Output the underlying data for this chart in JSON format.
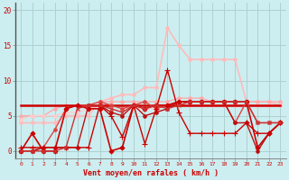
{
  "bg_color": "#cceef0",
  "grid_color": "#aacccc",
  "xlabel": "Vent moyen/en rafales ( km/h )",
  "xlabel_color": "#cc0000",
  "ylabel_ticks": [
    0,
    5,
    10,
    15,
    20
  ],
  "xticks": [
    0,
    1,
    2,
    3,
    4,
    5,
    6,
    7,
    8,
    9,
    10,
    11,
    12,
    13,
    14,
    15,
    16,
    17,
    18,
    19,
    20,
    21,
    22,
    23
  ],
  "xlim": [
    -0.5,
    23.5
  ],
  "ylim": [
    -1,
    21
  ],
  "lines": [
    {
      "comment": "light pink high line - peaks at x=13 ~17.5, x=14~15, x=15~13, x=16~13",
      "y": [
        4,
        4,
        4,
        4,
        5,
        5,
        5,
        7,
        7.5,
        8,
        8,
        9,
        9,
        17.5,
        15,
        13,
        13,
        13,
        13,
        13,
        7,
        7,
        7,
        6.5
      ],
      "color": "#ffbbbb",
      "lw": 1.2,
      "marker": "o",
      "ms": 2.5,
      "zorder": 2
    },
    {
      "comment": "medium pink - roughly flat around 6-7",
      "y": [
        5,
        5,
        5,
        6,
        6.5,
        6.5,
        6.5,
        7,
        7,
        7,
        7,
        7,
        7,
        7,
        7.5,
        7.5,
        7.5,
        7,
        7,
        7,
        7,
        7,
        7,
        7
      ],
      "color": "#ffaaaa",
      "lw": 1.0,
      "marker": "o",
      "ms": 2.5,
      "zorder": 2
    },
    {
      "comment": "lighter pink flat around 5-6",
      "y": [
        4.5,
        5,
        5,
        5,
        5.5,
        5.5,
        6,
        6.5,
        6.5,
        6,
        6,
        6,
        6,
        6.5,
        6.5,
        6.5,
        6.5,
        6.5,
        6.5,
        6.5,
        6.5,
        6.5,
        6.5,
        6.5
      ],
      "color": "#ffcccc",
      "lw": 1.0,
      "marker": "o",
      "ms": 2.5,
      "zorder": 2
    },
    {
      "comment": "dark red line 1 - peaks at x=13 ~11, x=7 peak",
      "y": [
        0.5,
        0.5,
        0.5,
        0.5,
        0.5,
        0.5,
        0.5,
        6.5,
        5,
        2,
        6.5,
        1,
        6,
        11.5,
        5.5,
        2.5,
        2.5,
        2.5,
        2.5,
        2.5,
        4,
        2.5,
        2.5,
        4
      ],
      "color": "#cc0000",
      "lw": 1.0,
      "marker": "+",
      "ms": 4,
      "zorder": 5
    },
    {
      "comment": "horizontal flat red line at ~6.5",
      "y": [
        6.5,
        6.5,
        6.5,
        6.5,
        6.5,
        6.5,
        6.5,
        6.5,
        6.5,
        6.5,
        6.5,
        6.5,
        6.5,
        6.5,
        6.5,
        6.5,
        6.5,
        6.5,
        6.5,
        6.5,
        6.5,
        6.5,
        6.5,
        6.5
      ],
      "color": "#cc0000",
      "lw": 1.8,
      "marker": null,
      "ms": 0,
      "zorder": 4
    },
    {
      "comment": "dark red - diamond markers, starts low rises",
      "y": [
        0,
        2.5,
        0,
        0,
        6,
        6.5,
        6,
        6,
        0,
        0.5,
        6.5,
        6,
        6.5,
        6.5,
        7,
        7,
        7,
        7,
        7,
        7,
        7,
        0.5,
        2.5,
        4
      ],
      "color": "#cc0000",
      "lw": 1.2,
      "marker": "D",
      "ms": 2.5,
      "zorder": 5
    },
    {
      "comment": "medium red - starts near 0, rises to 7",
      "y": [
        0,
        0,
        0,
        0,
        0.5,
        6,
        6.5,
        6.5,
        6,
        5.5,
        6.5,
        6,
        6.5,
        6,
        6.5,
        7,
        7,
        7,
        7,
        7,
        7,
        4,
        4,
        4
      ],
      "color": "#cc3333",
      "lw": 1.0,
      "marker": "x",
      "ms": 3.5,
      "zorder": 5
    },
    {
      "comment": "red line starts 0, rises mid, dips at end",
      "y": [
        0,
        0,
        0.5,
        3,
        6,
        6.5,
        6.5,
        7,
        6.5,
        6,
        6.5,
        7,
        6,
        6.5,
        7,
        7,
        7,
        7,
        7,
        4,
        7,
        4,
        4,
        4
      ],
      "color": "#dd4444",
      "lw": 1.0,
      "marker": "o",
      "ms": 2.5,
      "zorder": 4
    },
    {
      "comment": "dark red line - starts 0, rises, dips to 0 near x=21",
      "y": [
        0,
        0,
        0.5,
        0.5,
        0.5,
        0.5,
        6.5,
        6.5,
        5.5,
        5,
        6.5,
        5,
        5.5,
        6,
        7,
        7,
        7,
        7,
        7,
        4,
        4,
        0,
        2.5,
        4
      ],
      "color": "#bb1111",
      "lw": 1.0,
      "marker": "o",
      "ms": 2.5,
      "zorder": 4
    }
  ]
}
